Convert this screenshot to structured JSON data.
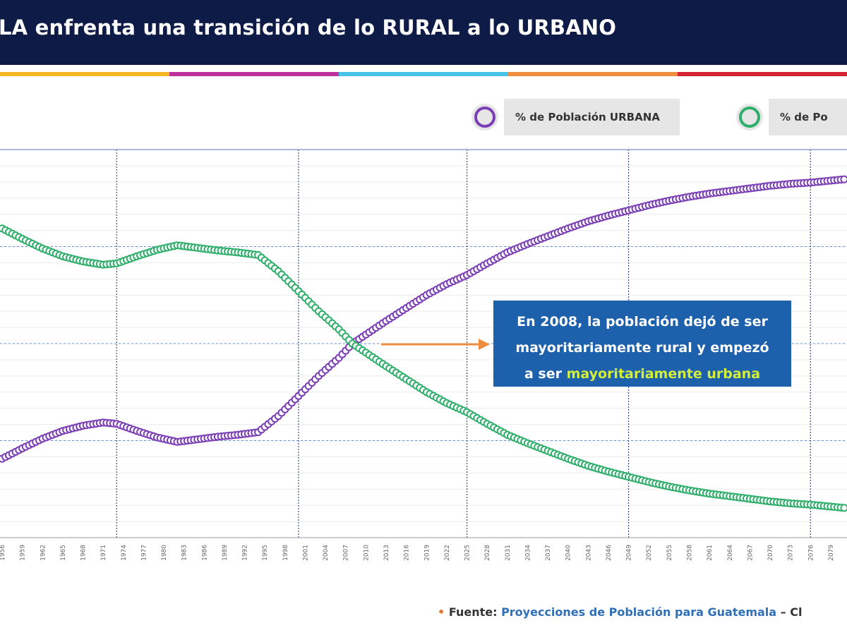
{
  "header": {
    "title": "LA enfrenta una transición de lo RURAL a lo URBANO",
    "strip_colors": [
      "#f6b625",
      "#c0309d",
      "#45c2e6",
      "#ee8c40",
      "#d42632"
    ],
    "bg_color": "#0e1b47"
  },
  "legend": [
    {
      "label": "% de Población URBANA",
      "color": "#7b3fb5"
    },
    {
      "label": "% de Po",
      "color": "#2fae6b"
    }
  ],
  "annotation": {
    "line1": "En 2008, la población dejó de ser",
    "line2": "mayoritariamente rural y empezó",
    "line3_prefix": "a ser ",
    "line3_highlight": "mayoritariamente urbana",
    "highlight_color": "#d4ee3a",
    "box_color": "#1d60ac",
    "arrow_color": "#ee8c40"
  },
  "source": {
    "bullet": "•",
    "label": "Fuente:",
    "link_text": "Proyecciones de Población para Guatemala",
    "suffix": "– Cl"
  },
  "chart_data": {
    "type": "line",
    "x_ticks": [
      "1956",
      "1959",
      "1962",
      "1965",
      "1968",
      "1971",
      "1974",
      "1977",
      "1980",
      "1983",
      "1986",
      "1989",
      "1992",
      "1995",
      "1998",
      "2001",
      "2004",
      "2007",
      "2010",
      "2013",
      "2016",
      "2019",
      "2022",
      "2025",
      "2028",
      "2031",
      "2034",
      "2037",
      "2040",
      "2043",
      "2046",
      "2049",
      "2052",
      "2055",
      "2058",
      "2061",
      "2064",
      "2067",
      "2070",
      "2073",
      "2076",
      "2079"
    ],
    "series": [
      {
        "name": "% de Población URBANA",
        "color": "#7b3fb5",
        "points": [
          [
            1956,
            32.2
          ],
          [
            1959,
            33.8
          ],
          [
            1962,
            35.3
          ],
          [
            1965,
            36.5
          ],
          [
            1968,
            37.3
          ],
          [
            1971,
            37.8
          ],
          [
            1973,
            37.6
          ],
          [
            1976,
            36.5
          ],
          [
            1979,
            35.5
          ],
          [
            1982,
            34.8
          ],
          [
            1985,
            35.2
          ],
          [
            1988,
            35.6
          ],
          [
            1991,
            35.9
          ],
          [
            1994,
            36.3
          ],
          [
            1997,
            38.8
          ],
          [
            2000,
            41.9
          ],
          [
            2003,
            45.0
          ],
          [
            2006,
            47.8
          ],
          [
            2008,
            50.0
          ],
          [
            2010,
            51.4
          ],
          [
            2013,
            53.5
          ],
          [
            2016,
            55.5
          ],
          [
            2019,
            57.5
          ],
          [
            2022,
            59.2
          ],
          [
            2025,
            60.6
          ],
          [
            2028,
            62.4
          ],
          [
            2031,
            64.1
          ],
          [
            2034,
            65.4
          ],
          [
            2037,
            66.6
          ],
          [
            2040,
            67.8
          ],
          [
            2043,
            68.9
          ],
          [
            2046,
            69.8
          ],
          [
            2049,
            70.6
          ],
          [
            2052,
            71.4
          ],
          [
            2055,
            72.1
          ],
          [
            2058,
            72.7
          ],
          [
            2061,
            73.2
          ],
          [
            2064,
            73.6
          ],
          [
            2067,
            74.0
          ],
          [
            2070,
            74.4
          ],
          [
            2073,
            74.7
          ],
          [
            2076,
            74.9
          ],
          [
            2079,
            75.2
          ],
          [
            2081,
            75.4
          ]
        ]
      },
      {
        "name": "% de Po",
        "color": "#2fae6b",
        "points": [
          [
            1956,
            67.8
          ],
          [
            1959,
            66.2
          ],
          [
            1962,
            64.7
          ],
          [
            1965,
            63.5
          ],
          [
            1968,
            62.7
          ],
          [
            1971,
            62.2
          ],
          [
            1973,
            62.4
          ],
          [
            1976,
            63.5
          ],
          [
            1979,
            64.5
          ],
          [
            1982,
            65.2
          ],
          [
            1985,
            64.8
          ],
          [
            1988,
            64.4
          ],
          [
            1991,
            64.1
          ],
          [
            1994,
            63.7
          ],
          [
            1997,
            61.2
          ],
          [
            2000,
            58.1
          ],
          [
            2003,
            55.0
          ],
          [
            2006,
            52.2
          ],
          [
            2008,
            50.0
          ],
          [
            2010,
            48.6
          ],
          [
            2013,
            46.5
          ],
          [
            2016,
            44.5
          ],
          [
            2019,
            42.5
          ],
          [
            2022,
            40.8
          ],
          [
            2025,
            39.4
          ],
          [
            2028,
            37.6
          ],
          [
            2031,
            35.9
          ],
          [
            2034,
            34.6
          ],
          [
            2037,
            33.4
          ],
          [
            2040,
            32.2
          ],
          [
            2043,
            31.1
          ],
          [
            2046,
            30.2
          ],
          [
            2049,
            29.4
          ],
          [
            2052,
            28.6
          ],
          [
            2055,
            27.9
          ],
          [
            2058,
            27.3
          ],
          [
            2061,
            26.8
          ],
          [
            2064,
            26.4
          ],
          [
            2067,
            26.0
          ],
          [
            2070,
            25.6
          ],
          [
            2073,
            25.3
          ],
          [
            2076,
            25.1
          ],
          [
            2079,
            24.8
          ],
          [
            2081,
            24.6
          ]
        ]
      }
    ]
  }
}
